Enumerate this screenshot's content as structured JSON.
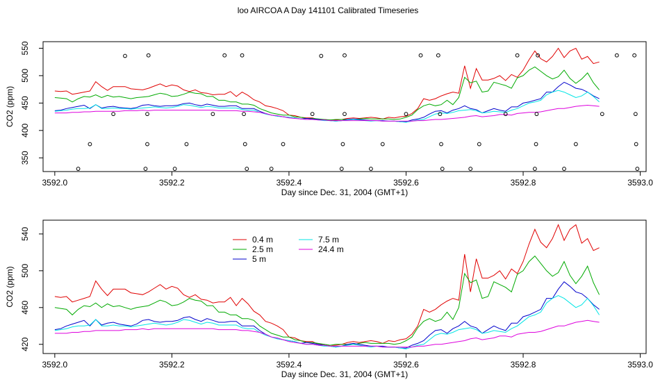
{
  "title": "loo AIRCOA A  Day 141101  Calibrated Timeseries",
  "chart_data": [
    {
      "type": "line+scatter",
      "xlabel": "Day since Dec. 31, 2004 (GMT+1)",
      "ylabel": "CO2 (ppm)",
      "xlim": [
        3591.98,
        3593.01
      ],
      "ylim": [
        325,
        562
      ],
      "xticks": [
        3592.0,
        3592.2,
        3592.4,
        3592.6,
        3592.8,
        3593.0
      ],
      "xtick_labels": [
        "3592.0",
        "3592.2",
        "3592.4",
        "3592.6",
        "3592.8",
        "3593.0"
      ],
      "yticks": [
        350,
        400,
        450,
        500,
        550
      ],
      "ytick_labels": [
        "350",
        "400",
        "450",
        "500",
        "550"
      ],
      "scatter_color": "#000000",
      "scatter_points": [
        [
          3592.04,
          330
        ],
        [
          3592.06,
          375
        ],
        [
          3592.1,
          430
        ],
        [
          3592.12,
          536
        ],
        [
          3592.155,
          330
        ],
        [
          3592.158,
          375
        ],
        [
          3592.158,
          430
        ],
        [
          3592.16,
          537
        ],
        [
          3592.205,
          330
        ],
        [
          3592.225,
          375
        ],
        [
          3592.27,
          430
        ],
        [
          3592.29,
          537
        ],
        [
          3592.32,
          537
        ],
        [
          3592.323,
          430
        ],
        [
          3592.325,
          375
        ],
        [
          3592.328,
          330
        ],
        [
          3592.37,
          330
        ],
        [
          3592.39,
          375
        ],
        [
          3592.44,
          430
        ],
        [
          3592.455,
          536
        ],
        [
          3592.49,
          330
        ],
        [
          3592.492,
          375
        ],
        [
          3592.495,
          430
        ],
        [
          3592.495,
          537
        ],
        [
          3592.54,
          330
        ],
        [
          3592.56,
          375
        ],
        [
          3592.6,
          430
        ],
        [
          3592.625,
          537
        ],
        [
          3592.655,
          537
        ],
        [
          3592.658,
          430
        ],
        [
          3592.66,
          375
        ],
        [
          3592.662,
          330
        ],
        [
          3592.71,
          330
        ],
        [
          3592.725,
          375
        ],
        [
          3592.77,
          430
        ],
        [
          3592.79,
          537
        ],
        [
          3592.82,
          330
        ],
        [
          3592.822,
          375
        ],
        [
          3592.823,
          430
        ],
        [
          3592.825,
          537
        ],
        [
          3592.87,
          330
        ],
        [
          3592.89,
          375
        ],
        [
          3592.935,
          430
        ],
        [
          3592.96,
          537
        ],
        [
          3592.99,
          537
        ],
        [
          3592.992,
          430
        ],
        [
          3592.993,
          375
        ],
        [
          3592.995,
          330
        ]
      ],
      "series": [
        {
          "name": "0.4 m",
          "color": "#e00000",
          "x0": 3592.0,
          "dx": 0.01,
          "values": [
            472,
            471,
            472,
            466,
            468,
            470,
            472,
            489,
            480,
            473,
            480,
            480,
            480,
            476,
            475,
            474,
            477,
            481,
            485,
            480,
            483,
            481,
            474,
            471,
            474,
            469,
            468,
            465,
            466,
            466,
            471,
            462,
            470,
            464,
            456,
            452,
            445,
            443,
            440,
            436,
            428,
            427,
            424,
            423,
            423,
            420,
            420,
            419,
            419,
            420,
            422,
            423,
            422,
            423,
            424,
            423,
            421,
            424,
            423,
            425,
            426,
            431,
            440,
            458,
            455,
            458,
            463,
            467,
            470,
            468,
            518,
            477,
            513,
            492,
            492,
            495,
            500,
            491,
            502,
            497,
            510,
            529,
            545,
            531,
            525,
            535,
            550,
            533,
            545,
            550,
            530,
            535,
            522,
            525
          ]
        },
        {
          "name": "2.5 m",
          "color": "#00aa00",
          "x0": 3592.0,
          "dx": 0.01,
          "values": [
            460,
            459,
            458,
            452,
            458,
            462,
            461,
            465,
            460,
            464,
            461,
            462,
            460,
            458,
            460,
            461,
            462,
            465,
            468,
            466,
            462,
            463,
            466,
            470,
            468,
            467,
            462,
            462,
            455,
            455,
            452,
            452,
            448,
            448,
            446,
            440,
            436,
            432,
            430,
            428,
            428,
            425,
            424,
            422,
            422,
            421,
            420,
            419,
            420,
            420,
            420,
            420,
            421,
            422,
            421,
            421,
            421,
            421,
            420,
            421,
            424,
            428,
            438,
            445,
            448,
            445,
            447,
            455,
            447,
            460,
            497,
            487,
            490,
            470,
            472,
            488,
            485,
            482,
            477,
            496,
            500,
            510,
            516,
            508,
            500,
            494,
            498,
            510,
            495,
            486,
            494,
            505,
            487,
            474
          ]
        },
        {
          "name": "5 m",
          "color": "#0000cc",
          "x0": 3592.0,
          "dx": 0.01,
          "values": [
            436,
            437,
            440,
            442,
            444,
            446,
            440,
            447,
            441,
            443,
            444,
            442,
            441,
            440,
            442,
            446,
            447,
            445,
            444,
            445,
            445,
            446,
            449,
            450,
            447,
            445,
            448,
            446,
            444,
            444,
            445,
            445,
            440,
            440,
            440,
            435,
            431,
            428,
            426,
            425,
            424,
            423,
            421,
            422,
            421,
            420,
            419,
            418,
            417,
            418,
            420,
            421,
            420,
            419,
            418,
            418,
            418,
            417,
            417,
            416,
            416,
            419,
            421,
            424,
            430,
            435,
            436,
            432,
            437,
            440,
            445,
            440,
            438,
            432,
            436,
            440,
            437,
            435,
            443,
            443,
            450,
            452,
            455,
            458,
            470,
            470,
            480,
            488,
            483,
            477,
            475,
            470,
            463,
            458
          ]
        },
        {
          "name": "7.5 m",
          "color": "#00e5e5",
          "x0": 3592.0,
          "dx": 0.01,
          "values": [
            435,
            436,
            437,
            439,
            440,
            440,
            441,
            447,
            440,
            440,
            441,
            440,
            440,
            439,
            440,
            441,
            442,
            443,
            442,
            441,
            442,
            444,
            447,
            446,
            444,
            442,
            444,
            443,
            441,
            441,
            441,
            441,
            438,
            437,
            437,
            433,
            430,
            428,
            426,
            425,
            424,
            423,
            421,
            420,
            420,
            419,
            418,
            418,
            417,
            418,
            419,
            420,
            419,
            418,
            417,
            418,
            417,
            417,
            417,
            416,
            415,
            417,
            419,
            420,
            425,
            430,
            432,
            431,
            433,
            436,
            437,
            438,
            436,
            432,
            433,
            435,
            434,
            433,
            437,
            440,
            445,
            450,
            452,
            455,
            465,
            470,
            473,
            470,
            465,
            460,
            463,
            470,
            462,
            452
          ]
        },
        {
          "name": "24.4 m",
          "color": "#dd00dd",
          "x0": 3592.0,
          "dx": 0.01,
          "values": [
            432,
            432,
            432,
            433,
            433,
            434,
            434,
            435,
            435,
            435,
            435,
            435,
            436,
            436,
            436,
            437,
            436,
            437,
            437,
            437,
            437,
            437,
            437,
            437,
            437,
            437,
            437,
            437,
            436,
            436,
            436,
            436,
            435,
            435,
            434,
            433,
            431,
            428,
            427,
            425,
            423,
            422,
            421,
            420,
            420,
            419,
            419,
            418,
            418,
            418,
            418,
            418,
            418,
            418,
            418,
            418,
            417,
            417,
            417,
            417,
            417,
            417,
            418,
            418,
            419,
            420,
            420,
            421,
            422,
            423,
            424,
            426,
            427,
            425,
            426,
            427,
            429,
            429,
            428,
            431,
            432,
            433,
            433,
            434,
            436,
            438,
            440,
            440,
            442,
            444,
            445,
            446,
            445,
            444
          ]
        }
      ]
    },
    {
      "type": "line",
      "xlabel": "Day since Dec. 31, 2004 (GMT+1)",
      "ylabel": "CO2 (ppm)",
      "xlim": [
        3591.98,
        3593.01
      ],
      "ylim": [
        410,
        555
      ],
      "xticks": [
        3592.0,
        3592.2,
        3592.4,
        3592.6,
        3592.8,
        3593.0
      ],
      "xtick_labels": [
        "3592.0",
        "3592.2",
        "3592.4",
        "3592.6",
        "3592.8",
        "3593.0"
      ],
      "yticks": [
        420,
        460,
        500,
        540
      ],
      "ytick_labels": [
        "420",
        "460",
        "500",
        "540"
      ],
      "legend_position": "top-left",
      "legend": [
        {
          "name": "0.4 m",
          "color": "#e00000"
        },
        {
          "name": "2.5 m",
          "color": "#00aa00"
        },
        {
          "name": "5 m",
          "color": "#0000cc"
        },
        {
          "name": "7.5 m",
          "color": "#00e5e5"
        },
        {
          "name": "24.4 m",
          "color": "#dd00dd"
        }
      ],
      "series_from_panel": 0
    }
  ]
}
